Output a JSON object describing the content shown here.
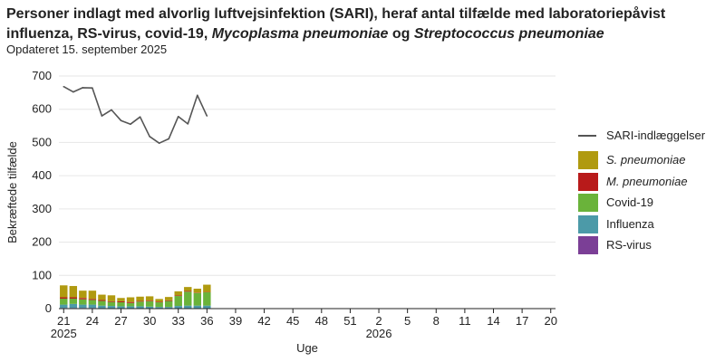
{
  "title": {
    "part1": "Personer indlagt med alvorlig luftvejsinfektion (SARI), heraf antal tilfælde med laboratoriepåvist influenza, RS-virus, covid-19, ",
    "part2": "Mycoplasma pneumoniae",
    "part3": " og ",
    "part4": "Streptococcus pneumoniae"
  },
  "subtitle": "Opdateret 15. september 2025",
  "chart_data": {
    "type": "bar",
    "xlabel": "Uge",
    "ylabel": "Bekræftede tilfælde",
    "ylim": [
      0,
      700
    ],
    "yticks": [
      0,
      100,
      200,
      300,
      400,
      500,
      600,
      700
    ],
    "grid": true,
    "legend_position": "right",
    "weeks": [
      "21",
      "22",
      "23",
      "24",
      "25",
      "26",
      "27",
      "28",
      "29",
      "30",
      "31",
      "32",
      "33",
      "34",
      "35",
      "36",
      "37",
      "38",
      "39",
      "40",
      "41",
      "42",
      "43",
      "44",
      "45",
      "46",
      "47",
      "48",
      "49",
      "50",
      "51",
      "52",
      "1",
      "2",
      "3",
      "4",
      "5",
      "6",
      "7",
      "8",
      "9",
      "10",
      "11",
      "12",
      "13",
      "14",
      "15",
      "16",
      "17",
      "18",
      "19",
      "20"
    ],
    "x_tick_labels": [
      "21",
      "24",
      "27",
      "30",
      "33",
      "36",
      "39",
      "42",
      "45",
      "48",
      "51",
      "2",
      "5",
      "8",
      "11",
      "14",
      "17",
      "20"
    ],
    "year_labels": [
      {
        "label": "2025",
        "at_week": "21"
      },
      {
        "label": "2026",
        "at_week": "2"
      }
    ],
    "line_series": {
      "name": "SARI-indlæggelser",
      "color": "#555555",
      "values": [
        668,
        652,
        665,
        664,
        580,
        598,
        566,
        555,
        577,
        518,
        498,
        511,
        578,
        556,
        642,
        580
      ]
    },
    "stack_series": [
      {
        "name": "RS-virus",
        "italic": false,
        "color": "#7b3f96",
        "values": [
          2,
          2,
          2,
          2,
          1,
          1,
          1,
          1,
          1,
          1,
          1,
          1,
          1,
          1,
          1,
          1
        ]
      },
      {
        "name": "Influenza",
        "italic": false,
        "color": "#4c9aa8",
        "values": [
          10,
          12,
          10,
          10,
          8,
          7,
          6,
          6,
          6,
          5,
          4,
          4,
          7,
          8,
          8,
          8
        ]
      },
      {
        "name": "Covid-19",
        "italic": false,
        "color": "#6ab33a",
        "values": [
          18,
          16,
          16,
          14,
          14,
          12,
          12,
          10,
          14,
          16,
          14,
          18,
          30,
          42,
          38,
          40
        ]
      },
      {
        "name": "M. pneumoniae",
        "italic": true,
        "color": "#b81a1a",
        "values": [
          4,
          4,
          4,
          3,
          3,
          2,
          3,
          3,
          2,
          2,
          2,
          2,
          2,
          2,
          1,
          1
        ]
      },
      {
        "name": "S. pneumoniae",
        "italic": true,
        "color": "#b09a10",
        "values": [
          36,
          34,
          22,
          25,
          16,
          18,
          10,
          14,
          13,
          13,
          8,
          10,
          12,
          12,
          12,
          22
        ]
      }
    ]
  }
}
